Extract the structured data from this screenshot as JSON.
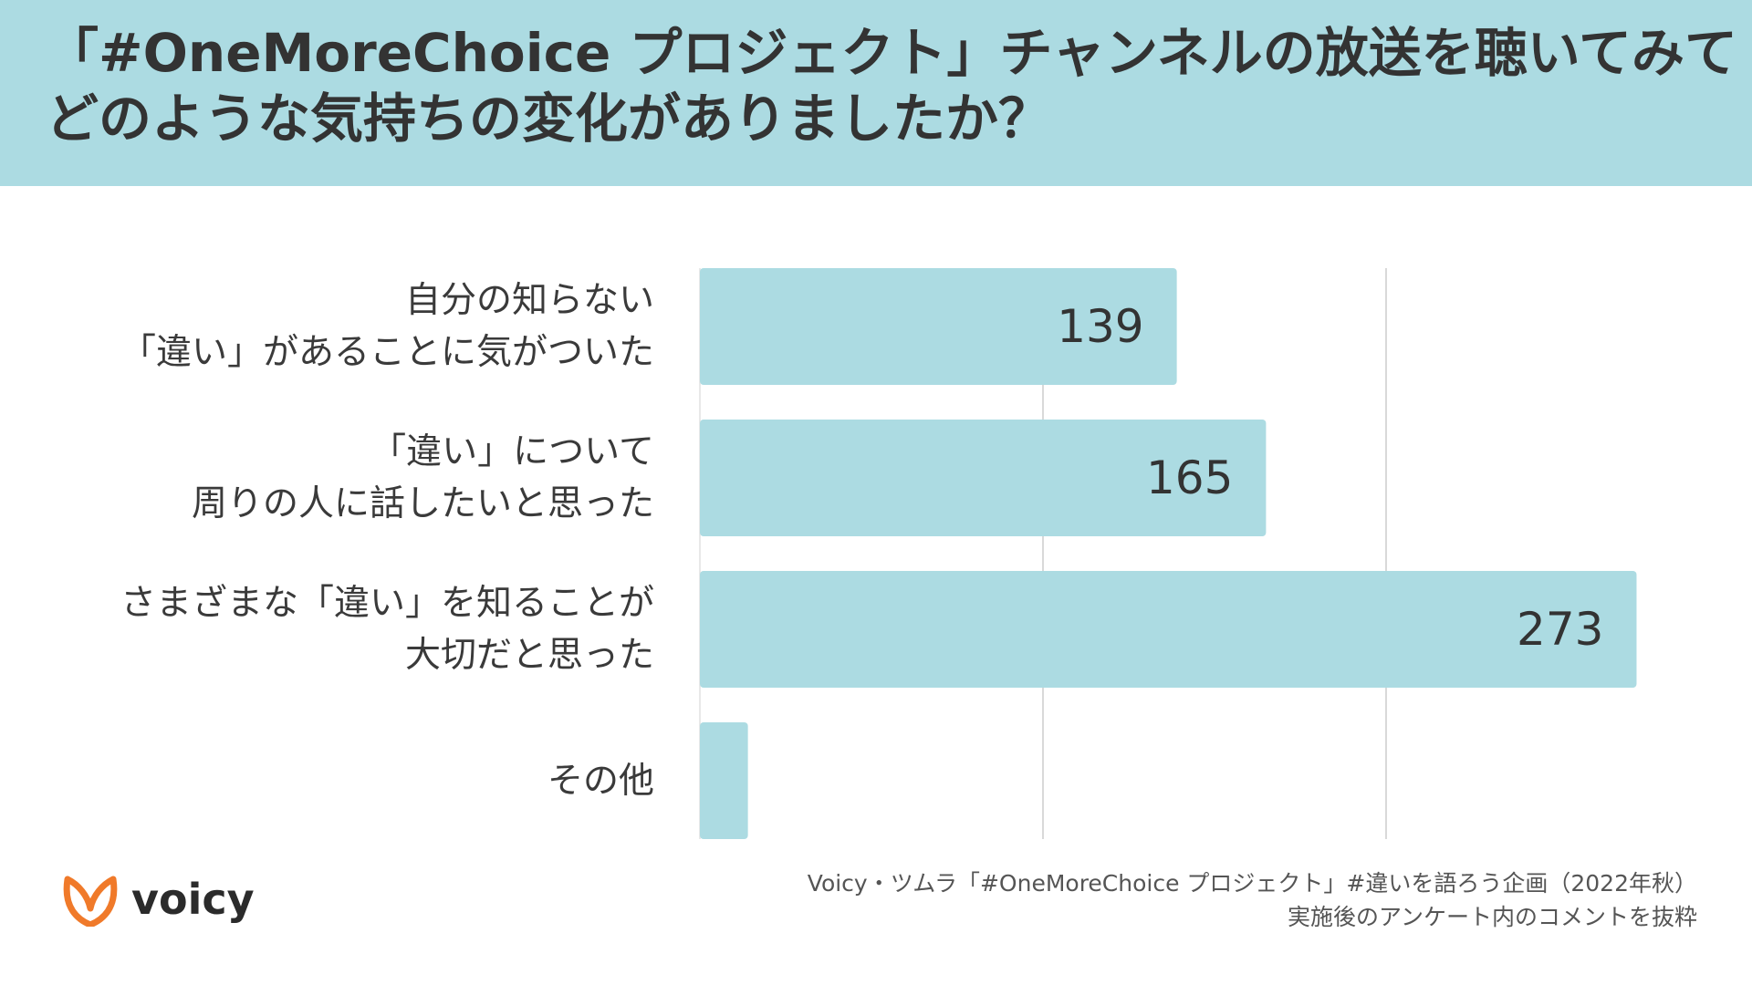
{
  "header": {
    "title_line1": "「#OneMoreChoice プロジェクト」チャンネルの放送を聴いてみて",
    "title_line2": "どのような気持ちの変化がありましたか？"
  },
  "chart_data": {
    "type": "bar",
    "orientation": "horizontal",
    "categories": [
      [
        "自分の知らない",
        "「違い」があることに気がついた"
      ],
      [
        "「違い」について",
        "周りの人に話したいと思った"
      ],
      [
        "さまざまな「違い」を知ることが",
        "大切だと思った"
      ],
      [
        "その他"
      ]
    ],
    "values": [
      139,
      165,
      273,
      14
    ],
    "value_labels": [
      "139",
      "165",
      "273",
      ""
    ],
    "xlim": [
      0,
      300
    ],
    "grid": true,
    "bar_color": "#acdbe2",
    "label_color": "#333333"
  },
  "logo": {
    "word": "voicy",
    "icon": "voicy-leaf-icon",
    "accent_color": "#f07a2a"
  },
  "source": {
    "line1": "Voicy・ツムラ「#OneMoreChoice プロジェクト」#違いを語ろう企画（2022年秋）",
    "line2": "実施後のアンケート内のコメントを抜粋"
  }
}
